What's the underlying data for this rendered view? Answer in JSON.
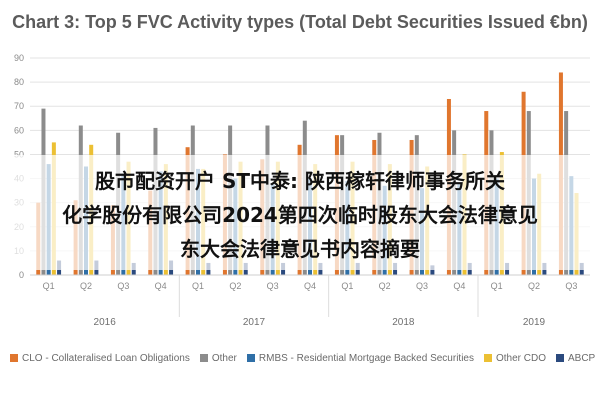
{
  "chart_data": {
    "type": "bar",
    "title": "Chart 3: Top 5 FVC Activity types (Total Debt Securities Issued €bn)",
    "ylim": [
      0,
      90
    ],
    "yticks": [
      0,
      10,
      20,
      30,
      40,
      50,
      60,
      70,
      80,
      90
    ],
    "grid": true,
    "legend_position": "bottom",
    "categories": [
      "Q1",
      "Q2",
      "Q3",
      "Q4",
      "Q1",
      "Q2",
      "Q3",
      "Q4",
      "Q1",
      "Q2",
      "Q3",
      "Q4",
      "Q1",
      "Q2",
      "Q3"
    ],
    "years": [
      {
        "label": "2016",
        "quarters": 4
      },
      {
        "label": "2017",
        "quarters": 4
      },
      {
        "label": "2018",
        "quarters": 4
      },
      {
        "label": "2019",
        "quarters": 3
      }
    ],
    "series": [
      {
        "name": "CLO - Collateralised Loan Obligations",
        "color": "#e0762e",
        "values": [
          30,
          31,
          29,
          35,
          53,
          50,
          48,
          54,
          58,
          56,
          56,
          73,
          68,
          76,
          84
        ]
      },
      {
        "name": "Other",
        "color": "#8c8c8c",
        "values": [
          69,
          62,
          59,
          61,
          62,
          62,
          62,
          64,
          58,
          59,
          58,
          60,
          60,
          68,
          68
        ]
      },
      {
        "name": "RMBS - Residential Mortgage Backed Securities",
        "color": "#2f6fa7",
        "values": [
          46,
          45,
          42,
          43,
          44,
          40,
          38,
          40,
          39,
          37,
          36,
          38,
          40,
          40,
          41
        ]
      },
      {
        "name": "Other CDO",
        "color": "#ecc033",
        "values": [
          55,
          54,
          47,
          46,
          44,
          47,
          47,
          46,
          47,
          46,
          45,
          50,
          51,
          42,
          34
        ]
      },
      {
        "name": "ABCP",
        "color": "#2b4a7e",
        "values": [
          6,
          6,
          5,
          6,
          5,
          5,
          5,
          5,
          5,
          5,
          4,
          5,
          5,
          5,
          5
        ]
      }
    ]
  },
  "overlay": {
    "line1": "股市配资开户 ST中泰: 陕西稼轩律师事务所关",
    "line2": "化学股份有限公司2024第四次临时股东大会法律意见",
    "line3": "东大会法律意见书内容摘要"
  }
}
